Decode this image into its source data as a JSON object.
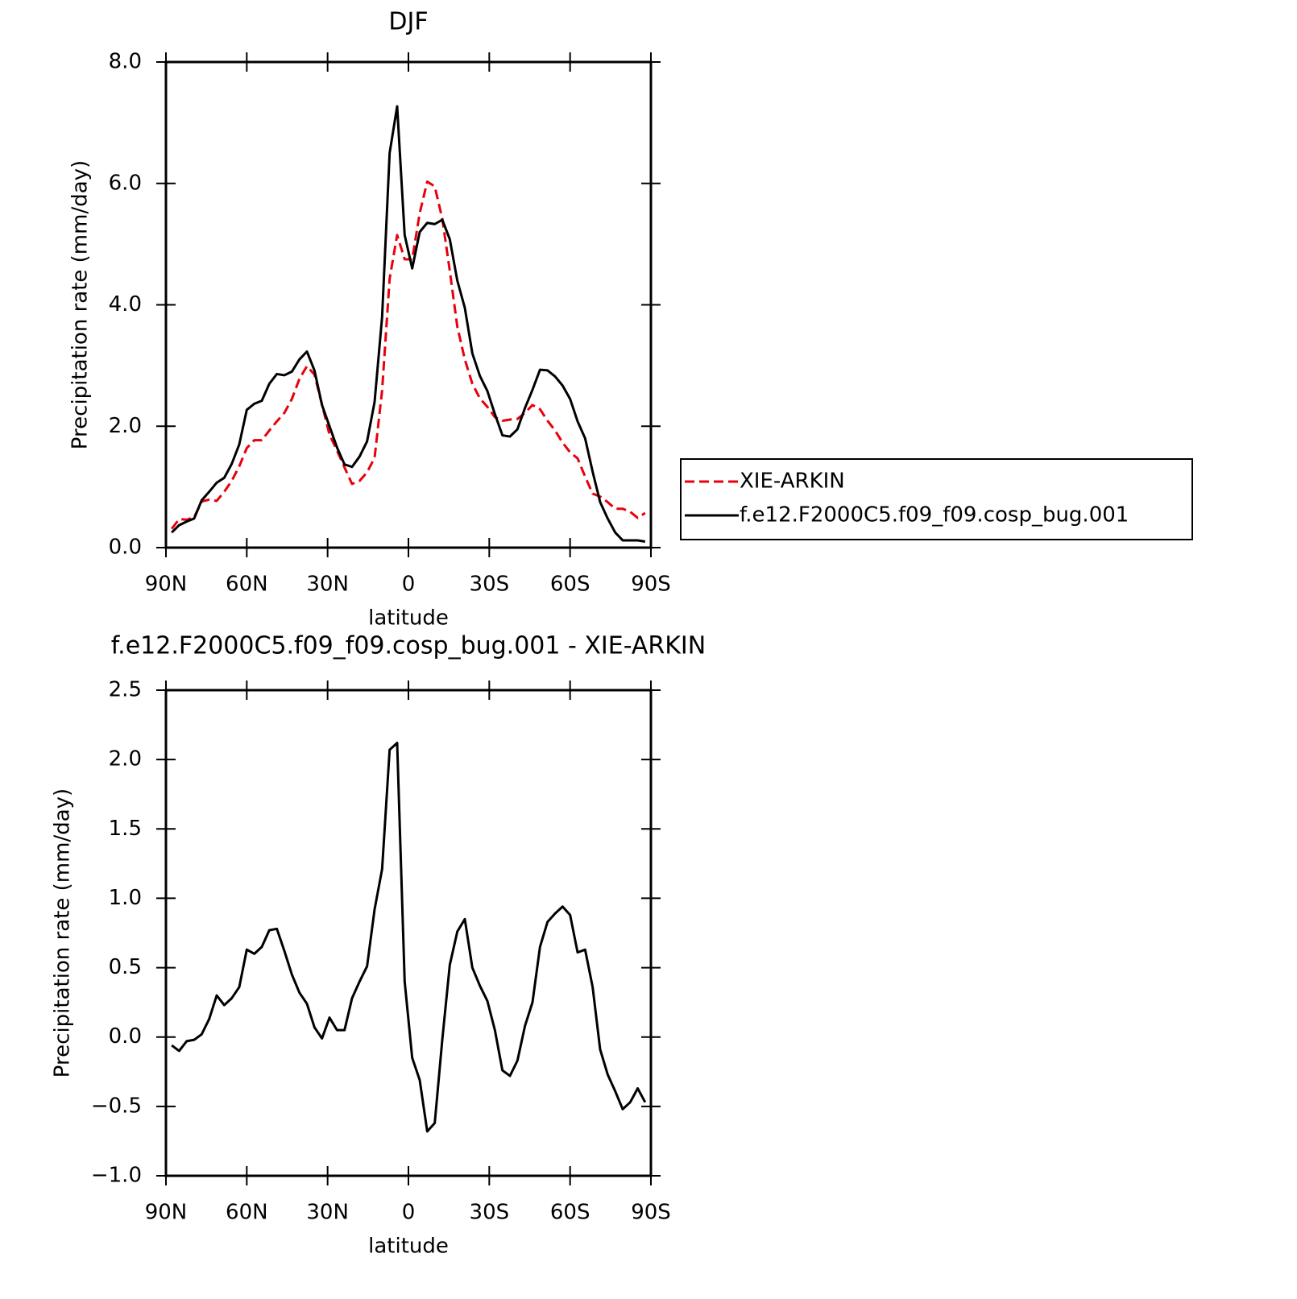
{
  "chart_data": [
    {
      "type": "line",
      "title": "DJF",
      "xlabel": "latitude",
      "ylabel": "Precipitation rate (mm/day)",
      "xlim": [
        90,
        -90
      ],
      "xticks": [
        {
          "value": 90,
          "label": "90N"
        },
        {
          "value": 60,
          "label": "60N"
        },
        {
          "value": 30,
          "label": "30N"
        },
        0,
        {
          "value": -30,
          "label": "30S"
        },
        {
          "value": -60,
          "label": "60S"
        },
        {
          "value": -90,
          "label": "90S"
        }
      ],
      "ylim": [
        0,
        8
      ],
      "yticks": [
        {
          "value": 0,
          "label": "0.0"
        },
        {
          "value": 2,
          "label": "2.0"
        },
        {
          "value": 4,
          "label": "4.0"
        },
        {
          "value": 6,
          "label": "6.0"
        },
        {
          "value": 8,
          "label": "8.0"
        }
      ],
      "legend": "right",
      "x": [
        87.86,
        85.1,
        82.31,
        79.53,
        76.74,
        73.95,
        71.16,
        68.37,
        65.58,
        62.79,
        60.0,
        57.21,
        54.42,
        51.63,
        48.84,
        46.04,
        43.25,
        40.46,
        37.67,
        34.88,
        32.09,
        29.3,
        26.51,
        23.72,
        20.93,
        18.14,
        15.35,
        12.56,
        9.77,
        6.98,
        4.19,
        1.4,
        -1.4,
        -4.19,
        -6.98,
        -9.77,
        -12.56,
        -15.35,
        -18.14,
        -20.93,
        -23.72,
        -26.51,
        -29.3,
        -32.09,
        -34.88,
        -37.67,
        -40.46,
        -43.25,
        -46.04,
        -48.84,
        -51.63,
        -54.42,
        -57.21,
        -60.0,
        -62.79,
        -65.58,
        -68.37,
        -71.16,
        -73.95,
        -76.74,
        -79.53,
        -82.31,
        -85.1,
        -87.86
      ],
      "series": [
        {
          "name": "XIE-ARKIN",
          "color": "#e8000b",
          "linestyle": "dashed",
          "values": [
            0.31,
            0.47,
            0.46,
            0.5,
            0.76,
            0.79,
            0.77,
            0.92,
            1.1,
            1.34,
            1.64,
            1.77,
            1.77,
            1.93,
            2.08,
            2.22,
            2.45,
            2.78,
            2.99,
            2.85,
            2.36,
            1.86,
            1.6,
            1.32,
            1.05,
            1.1,
            1.24,
            1.48,
            2.59,
            4.43,
            5.15,
            4.75,
            4.75,
            5.51,
            6.03,
            5.95,
            5.42,
            4.56,
            3.64,
            3.1,
            2.7,
            2.46,
            2.32,
            2.15,
            2.09,
            2.11,
            2.12,
            2.22,
            2.35,
            2.28,
            2.09,
            1.93,
            1.73,
            1.57,
            1.47,
            1.17,
            0.89,
            0.84,
            0.75,
            0.64,
            0.64,
            0.59,
            0.49,
            0.57
          ]
        },
        {
          "name": "f.e12.F2000C5.f09_f09.cosp_bug.001",
          "color": "#000000",
          "linestyle": "solid",
          "values": [
            0.25,
            0.37,
            0.43,
            0.48,
            0.78,
            0.92,
            1.07,
            1.15,
            1.38,
            1.7,
            2.27,
            2.37,
            2.42,
            2.7,
            2.86,
            2.84,
            2.9,
            3.1,
            3.23,
            2.92,
            2.35,
            2.0,
            1.65,
            1.37,
            1.33,
            1.5,
            1.75,
            2.4,
            3.8,
            6.5,
            7.27,
            5.15,
            4.6,
            5.2,
            5.35,
            5.33,
            5.4,
            5.08,
            4.4,
            3.95,
            3.2,
            2.83,
            2.58,
            2.2,
            1.85,
            1.83,
            1.95,
            2.3,
            2.6,
            2.93,
            2.92,
            2.82,
            2.67,
            2.45,
            2.08,
            1.8,
            1.25,
            0.75,
            0.48,
            0.25,
            0.12,
            0.12,
            0.12,
            0.1
          ]
        }
      ]
    },
    {
      "type": "line",
      "title": "f.e12.F2000C5.f09_f09.cosp_bug.001 - XIE-ARKIN",
      "xlabel": "latitude",
      "ylabel": "Precipitation rate (mm/day)",
      "xlim": [
        90,
        -90
      ],
      "xticks": [
        {
          "value": 90,
          "label": "90N"
        },
        {
          "value": 60,
          "label": "60N"
        },
        {
          "value": 30,
          "label": "30N"
        },
        0,
        {
          "value": -30,
          "label": "30S"
        },
        {
          "value": -60,
          "label": "60S"
        },
        {
          "value": -90,
          "label": "90S"
        }
      ],
      "ylim": [
        -1,
        2.5
      ],
      "yticks": [
        {
          "value": -1,
          "label": "−1.0"
        },
        {
          "value": -0.5,
          "label": "−0.5"
        },
        {
          "value": 0,
          "label": "0.0"
        },
        {
          "value": 0.5,
          "label": "0.5"
        },
        {
          "value": 1,
          "label": "1.0"
        },
        {
          "value": 1.5,
          "label": "1.5"
        },
        {
          "value": 2,
          "label": "2.0"
        },
        {
          "value": 2.5,
          "label": "2.5"
        }
      ],
      "x": [
        87.86,
        85.1,
        82.31,
        79.53,
        76.74,
        73.95,
        71.16,
        68.37,
        65.58,
        62.79,
        60.0,
        57.21,
        54.42,
        51.63,
        48.84,
        46.04,
        43.25,
        40.46,
        37.67,
        34.88,
        32.09,
        29.3,
        26.51,
        23.72,
        20.93,
        18.14,
        15.35,
        12.56,
        9.77,
        6.98,
        4.19,
        1.4,
        -1.4,
        -4.19,
        -6.98,
        -9.77,
        -12.56,
        -15.35,
        -18.14,
        -20.93,
        -23.72,
        -26.51,
        -29.3,
        -32.09,
        -34.88,
        -37.67,
        -40.46,
        -43.25,
        -46.04,
        -48.84,
        -51.63,
        -54.42,
        -57.21,
        -60.0,
        -62.79,
        -65.58,
        -68.37,
        -71.16,
        -73.95,
        -76.74,
        -79.53,
        -82.31,
        -85.1,
        -87.86
      ],
      "series": [
        {
          "color": "#000000",
          "linestyle": "solid",
          "values": [
            -0.06,
            -0.1,
            -0.03,
            -0.02,
            0.02,
            0.13,
            0.3,
            0.23,
            0.28,
            0.36,
            0.63,
            0.6,
            0.65,
            0.77,
            0.78,
            0.62,
            0.45,
            0.32,
            0.24,
            0.07,
            -0.01,
            0.14,
            0.05,
            0.05,
            0.28,
            0.4,
            0.51,
            0.92,
            1.21,
            2.07,
            2.12,
            0.4,
            -0.15,
            -0.31,
            -0.68,
            -0.62,
            -0.02,
            0.52,
            0.76,
            0.85,
            0.5,
            0.37,
            0.26,
            0.05,
            -0.24,
            -0.28,
            -0.17,
            0.08,
            0.25,
            0.65,
            0.83,
            0.89,
            0.94,
            0.88,
            0.61,
            0.63,
            0.36,
            -0.09,
            -0.27,
            -0.39,
            -0.52,
            -0.47,
            -0.37,
            -0.47
          ]
        }
      ]
    }
  ]
}
